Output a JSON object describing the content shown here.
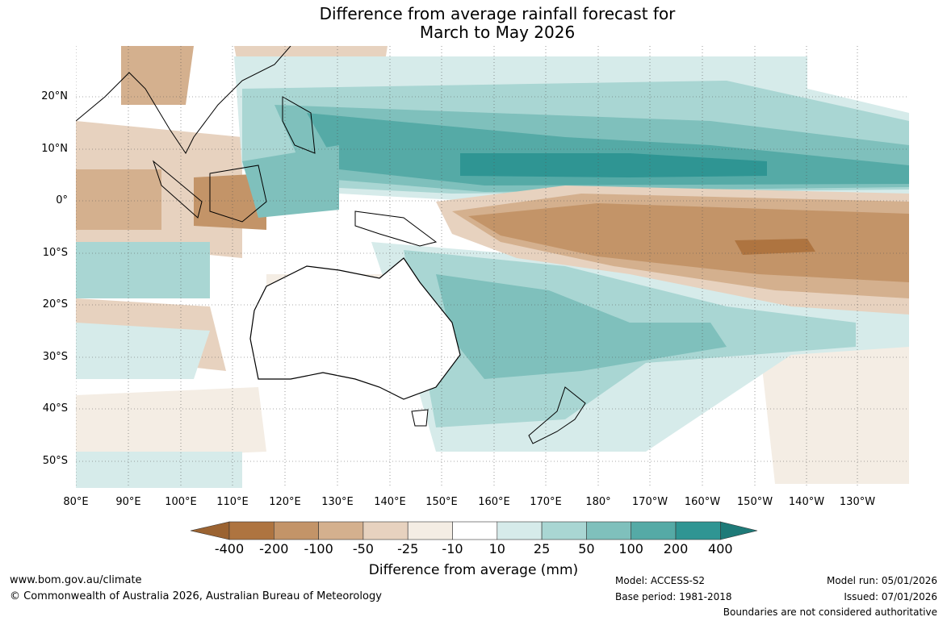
{
  "title": {
    "line1": "Difference from average rainfall forecast for",
    "line2": "March to May 2026"
  },
  "map": {
    "lat_labels": [
      "20°N",
      "10°N",
      "0°",
      "10°S",
      "20°S",
      "30°S",
      "40°S",
      "50°S"
    ],
    "lon_labels": [
      "80°E",
      "90°E",
      "100°E",
      "110°E",
      "120°E",
      "130°E",
      "140°E",
      "150°E",
      "160°E",
      "170°E",
      "180°",
      "170°W",
      "160°W",
      "150°W",
      "140°W",
      "130°W"
    ]
  },
  "colorbar": {
    "ticks": [
      "-400",
      "-200",
      "-100",
      "-50",
      "-25",
      "-10",
      "10",
      "25",
      "50",
      "100",
      "200",
      "400"
    ],
    "colors": [
      "#9b6331",
      "#ae7440",
      "#c39468",
      "#d4b08e",
      "#e7d2bf",
      "#f4ede4",
      "#ffffff",
      "#d6ebea",
      "#a9d6d3",
      "#7fc0bc",
      "#55aaa6",
      "#2f9593",
      "#1e7a78"
    ],
    "title": "Difference from average (mm)"
  },
  "footer": {
    "website": "www.bom.gov.au/climate",
    "copyright": "© Commonwealth of Australia 2026, Australian Bureau of Meteorology",
    "model": "Model: ACCESS-S2",
    "base_period": "Base period: 1981-2018",
    "model_run": "Model run: 05/01/2026",
    "issued": "Issued: 07/01/2026",
    "disclaimer": "Boundaries are not considered authoritative"
  }
}
